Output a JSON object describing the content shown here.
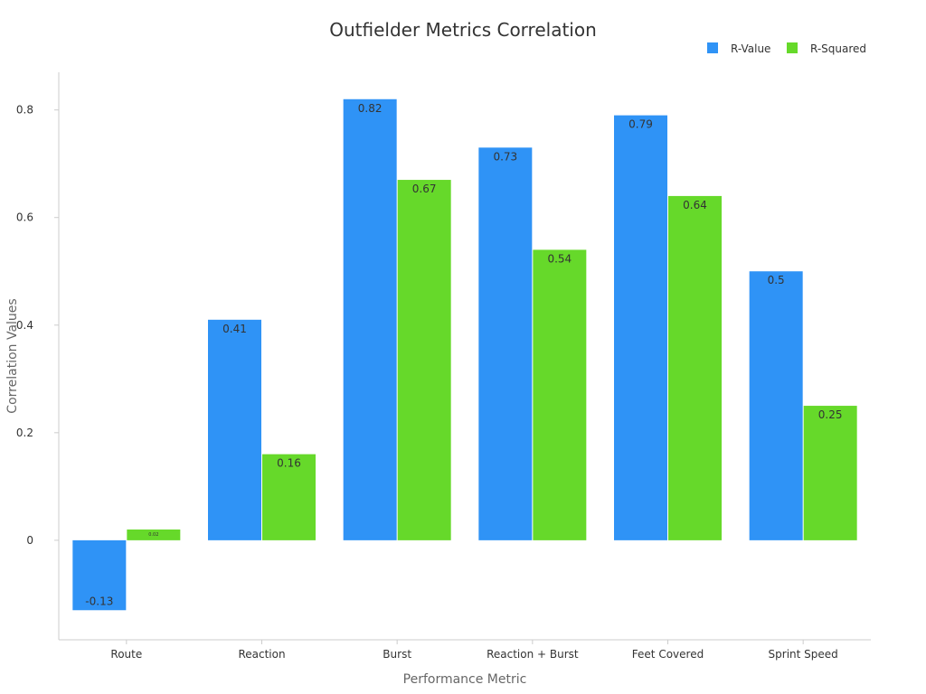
{
  "chart_data": {
    "type": "bar",
    "title": "Outfielder Metrics Correlation",
    "xlabel": "Performance Metric",
    "ylabel": "Correlation Values",
    "categories": [
      "Route",
      "Reaction",
      "Burst",
      "Reaction + Burst",
      "Feet Covered",
      "Sprint Speed"
    ],
    "series": [
      {
        "name": "R-Value",
        "values": [
          -0.13,
          0.41,
          0.82,
          0.73,
          0.79,
          0.5
        ],
        "labels": [
          "-0.13",
          "0.41",
          "0.82",
          "0.73",
          "0.79",
          "0.5"
        ],
        "color": "#2f93f6"
      },
      {
        "name": "R-Squared",
        "values": [
          0.02,
          0.16,
          0.67,
          0.54,
          0.64,
          0.25
        ],
        "labels": [
          "0.02",
          "0.16",
          "0.67",
          "0.54",
          "0.64",
          "0.25"
        ],
        "color": "#66d92a"
      }
    ],
    "ylim": [
      -0.185,
      0.87
    ],
    "yticks": [
      0,
      0.2,
      0.4,
      0.6,
      0.8
    ],
    "ytick_labels": [
      "0",
      "0.2",
      "0.4",
      "0.6",
      "0.8"
    ],
    "grid": false,
    "legend_position": "top-right"
  }
}
